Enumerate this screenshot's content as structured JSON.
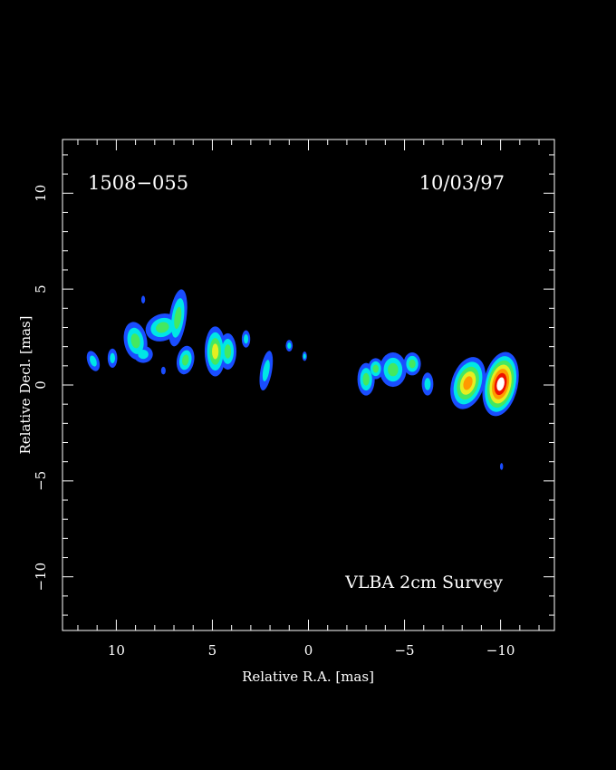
{
  "source_name": "1508−055",
  "epoch": "10/03/97",
  "survey_label": "VLBA 2cm Survey",
  "axes": {
    "xlabel": "Relative R.A. [mas]",
    "ylabel": "Relative Decl. [mas]",
    "xlim": [
      12.8,
      -12.8
    ],
    "ylim": [
      -12.8,
      12.8
    ],
    "x_ticks": [
      10,
      5,
      0,
      -5,
      -10
    ],
    "x_tick_labels": [
      "10",
      "5",
      "0",
      "−5",
      "−10"
    ],
    "y_ticks": [
      10,
      5,
      0,
      -5,
      -10
    ],
    "y_tick_labels": [
      "10",
      "5",
      "0",
      "−5",
      "−10"
    ]
  },
  "colors": {
    "background": "#000000",
    "frame": "#ffffff",
    "level_blue": "#1a4dff",
    "level_cyan": "#00e6e6",
    "level_green": "#44e860",
    "level_yellow": "#e6ee20",
    "level_orange": "#ff9a00",
    "level_red": "#ee1100",
    "level_white": "#ffffff"
  },
  "emission_components": [
    {
      "x": 11.2,
      "y": 1.25,
      "rx": 0.3,
      "ry": 0.55,
      "rot": -20,
      "peak": 1
    },
    {
      "x": 10.2,
      "y": 1.4,
      "rx": 0.25,
      "ry": 0.5,
      "rot": 0,
      "peak": 1
    },
    {
      "x": 9.0,
      "y": 2.3,
      "rx": 0.6,
      "ry": 1.0,
      "rot": -10,
      "peak": 2
    },
    {
      "x": 8.6,
      "y": 1.6,
      "rx": 0.5,
      "ry": 0.45,
      "rot": 0,
      "peak": 1
    },
    {
      "x": 8.6,
      "y": 4.45,
      "rx": 0.1,
      "ry": 0.2,
      "rot": 0,
      "peak": 0
    },
    {
      "x": 7.55,
      "y": 0.75,
      "rx": 0.12,
      "ry": 0.2,
      "rot": 0,
      "peak": 0
    },
    {
      "x": 7.6,
      "y": 3.0,
      "rx": 0.9,
      "ry": 0.7,
      "rot": -20,
      "peak": 2
    },
    {
      "x": 6.8,
      "y": 3.5,
      "rx": 0.45,
      "ry": 1.5,
      "rot": 8,
      "peak": 2
    },
    {
      "x": 6.4,
      "y": 1.3,
      "rx": 0.45,
      "ry": 0.75,
      "rot": 10,
      "peak": 2
    },
    {
      "x": 4.85,
      "y": 1.75,
      "rx": 0.55,
      "ry": 1.3,
      "rot": 0,
      "peak": 3
    },
    {
      "x": 4.2,
      "y": 1.75,
      "rx": 0.45,
      "ry": 0.95,
      "rot": 0,
      "peak": 2
    },
    {
      "x": 3.25,
      "y": 2.4,
      "rx": 0.22,
      "ry": 0.45,
      "rot": 0,
      "peak": 1
    },
    {
      "x": 2.2,
      "y": 0.75,
      "rx": 0.3,
      "ry": 1.05,
      "rot": 10,
      "peak": 1
    },
    {
      "x": 1.0,
      "y": 2.05,
      "rx": 0.18,
      "ry": 0.3,
      "rot": 0,
      "peak": 1
    },
    {
      "x": 0.2,
      "y": 1.5,
      "rx": 0.12,
      "ry": 0.25,
      "rot": 0,
      "peak": 1
    },
    {
      "x": -3.0,
      "y": 0.3,
      "rx": 0.45,
      "ry": 0.85,
      "rot": 0,
      "peak": 2
    },
    {
      "x": -3.5,
      "y": 0.85,
      "rx": 0.4,
      "ry": 0.55,
      "rot": 0,
      "peak": 2
    },
    {
      "x": -4.4,
      "y": 0.8,
      "rx": 0.7,
      "ry": 0.9,
      "rot": 0,
      "peak": 2
    },
    {
      "x": -5.4,
      "y": 1.1,
      "rx": 0.45,
      "ry": 0.6,
      "rot": 0,
      "peak": 2
    },
    {
      "x": -6.2,
      "y": 0.05,
      "rx": 0.3,
      "ry": 0.6,
      "rot": 0,
      "peak": 1
    },
    {
      "x": -8.3,
      "y": 0.1,
      "rx": 0.85,
      "ry": 1.4,
      "rot": 18,
      "peak": 4
    },
    {
      "x": -10.0,
      "y": 0.05,
      "rx": 0.9,
      "ry": 1.7,
      "rot": 12,
      "peak": 6
    },
    {
      "x": -10.05,
      "y": -4.25,
      "rx": 0.08,
      "ry": 0.18,
      "rot": 0,
      "peak": 0
    }
  ]
}
